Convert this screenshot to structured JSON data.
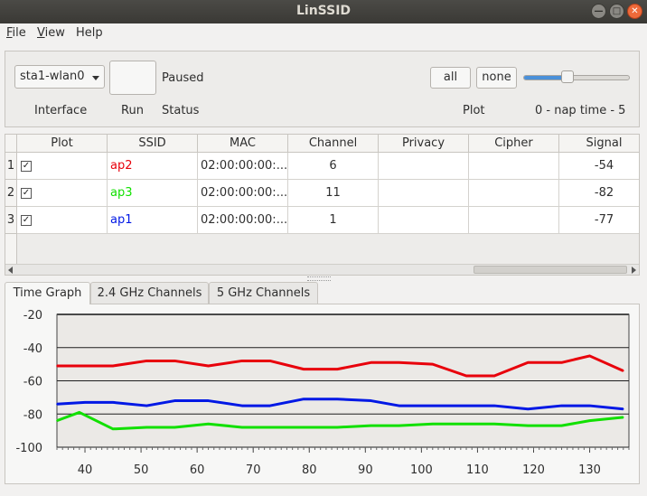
{
  "window": {
    "title": "LinSSID"
  },
  "menu": {
    "items": [
      "File",
      "View",
      "Help"
    ]
  },
  "controls": {
    "interface_value": "sta1-wlan0",
    "status_value": "Paused",
    "plot_all_label": "all",
    "plot_none_label": "none",
    "nap_slider_fraction": 0.4,
    "labels": {
      "interface": "Interface",
      "run": "Run",
      "status": "Status",
      "plot": "Plot",
      "nap": "0 - nap time - 5"
    }
  },
  "table": {
    "columns": [
      "Plot",
      "SSID",
      "MAC",
      "Channel",
      "Privacy",
      "Cipher",
      "Signal"
    ],
    "rows": [
      {
        "num": "1",
        "plot": true,
        "ssid": "ap2",
        "ssid_color": "#e8000b",
        "mac": "02:00:00:00:...",
        "channel": "6",
        "privacy": "",
        "cipher": "",
        "signal": "-54"
      },
      {
        "num": "2",
        "plot": true,
        "ssid": "ap3",
        "ssid_color": "#11e000",
        "mac": "02:00:00:00:...",
        "channel": "11",
        "privacy": "",
        "cipher": "",
        "signal": "-82"
      },
      {
        "num": "3",
        "plot": true,
        "ssid": "ap1",
        "ssid_color": "#0018e5",
        "mac": "02:00:00:00:...",
        "channel": "1",
        "privacy": "",
        "cipher": "",
        "signal": "-77"
      }
    ]
  },
  "tabs": [
    "Time Graph",
    "2.4 GHz Channels",
    "5 GHz Channels"
  ],
  "active_tab": 0,
  "chart_data": {
    "type": "line",
    "xlim": [
      35,
      137
    ],
    "ylim": [
      -100,
      -20
    ],
    "xticks": [
      40,
      50,
      60,
      70,
      80,
      90,
      100,
      110,
      120,
      130
    ],
    "xtick_labels": [
      "40",
      "50",
      "60",
      "70",
      "80",
      "90",
      "100",
      "110",
      "120",
      "130"
    ],
    "yticks": [
      -20,
      -40,
      -60,
      -80,
      -100
    ],
    "ytick_labels": [
      "-20",
      "-40",
      "-60",
      "-80",
      "-100"
    ],
    "grid": true,
    "series": [
      {
        "color": "#e8000b",
        "x": [
          35,
          40,
          45,
          51,
          56,
          62,
          68,
          73,
          79,
          85,
          91,
          96,
          102,
          108,
          113,
          119,
          125,
          130,
          136
        ],
        "y": [
          -51,
          -51,
          -51,
          -48,
          -48,
          -51,
          -48,
          -48,
          -53,
          -53,
          -49,
          -49,
          -50,
          -57,
          -57,
          -49,
          -49,
          -45,
          -54
        ]
      },
      {
        "color": "#0018e5",
        "x": [
          35,
          40,
          45,
          51,
          56,
          62,
          68,
          73,
          79,
          85,
          91,
          96,
          102,
          108,
          113,
          119,
          125,
          130,
          136
        ],
        "y": [
          -74,
          -73,
          -73,
          -75,
          -72,
          -72,
          -75,
          -75,
          -71,
          -71,
          -72,
          -75,
          -75,
          -75,
          -75,
          -77,
          -75,
          -75,
          -77
        ]
      },
      {
        "color": "#11e000",
        "x": [
          35,
          39,
          45,
          51,
          56,
          62,
          68,
          73,
          79,
          85,
          91,
          96,
          102,
          108,
          113,
          119,
          125,
          130,
          136
        ],
        "y": [
          -84,
          -79,
          -89,
          -88,
          -88,
          -86,
          -88,
          -88,
          -88,
          -88,
          -87,
          -87,
          -86,
          -86,
          -86,
          -87,
          -87,
          -84,
          -82
        ]
      }
    ]
  }
}
